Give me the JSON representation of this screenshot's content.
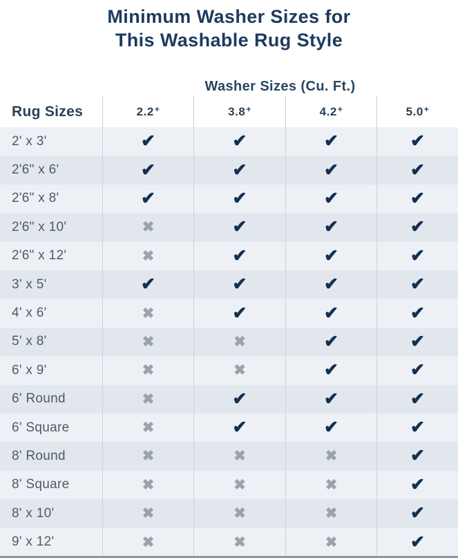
{
  "title": {
    "line1": "Minimum Washer Sizes for",
    "line2": "This Washable Rug Style"
  },
  "table": {
    "group_header": "Washer Sizes (Cu. Ft.)",
    "row_header": "Rug Sizes",
    "columns": [
      {
        "value": "2.2",
        "plus": "+"
      },
      {
        "value": "3.8",
        "plus": "+"
      },
      {
        "value": "4.2",
        "plus": "+"
      },
      {
        "value": "5.0",
        "plus": "+"
      }
    ],
    "rows": [
      {
        "label": "2' x 3'",
        "cells": [
          "check",
          "check",
          "check",
          "check"
        ]
      },
      {
        "label": "2'6\" x 6'",
        "cells": [
          "check",
          "check",
          "check",
          "check"
        ]
      },
      {
        "label": "2'6\" x 8'",
        "cells": [
          "check",
          "check",
          "check",
          "check"
        ]
      },
      {
        "label": "2'6\" x 10'",
        "cells": [
          "cross",
          "check",
          "check",
          "check"
        ]
      },
      {
        "label": "2'6\" x 12'",
        "cells": [
          "cross",
          "check",
          "check",
          "check"
        ]
      },
      {
        "label": "3' x 5'",
        "cells": [
          "check",
          "check",
          "check",
          "check"
        ]
      },
      {
        "label": "4' x 6'",
        "cells": [
          "cross",
          "check",
          "check",
          "check"
        ]
      },
      {
        "label": "5' x 8'",
        "cells": [
          "cross",
          "cross",
          "check",
          "check"
        ]
      },
      {
        "label": "6' x 9'",
        "cells": [
          "cross",
          "cross",
          "check",
          "check"
        ]
      },
      {
        "label": "6' Round",
        "cells": [
          "cross",
          "check",
          "check",
          "check"
        ]
      },
      {
        "label": "6' Square",
        "cells": [
          "cross",
          "check",
          "check",
          "check"
        ]
      },
      {
        "label": "8' Round",
        "cells": [
          "cross",
          "cross",
          "cross",
          "check"
        ]
      },
      {
        "label": "8' Square",
        "cells": [
          "cross",
          "cross",
          "cross",
          "check"
        ]
      },
      {
        "label": "8' x 10'",
        "cells": [
          "cross",
          "cross",
          "cross",
          "check"
        ]
      },
      {
        "label": "9' x 12'",
        "cells": [
          "cross",
          "cross",
          "cross",
          "check"
        ]
      }
    ]
  },
  "icons": {
    "check_glyph": "✔",
    "cross_glyph": "✖"
  },
  "colors": {
    "title_navy": "#1e3a5e",
    "header_navy": "#2b4156",
    "check_navy": "#14304f",
    "cross_gray": "#9aa2ad",
    "row_light": "#edf1f5",
    "row_dark": "#e2e7ee",
    "divider": "#ccd3da",
    "bottom_edge": "#8f969e"
  },
  "chart_data": {
    "type": "table",
    "title": "Minimum Washer Sizes for This Washable Rug Style",
    "subtitle": "Washer Sizes (Cu. Ft.)",
    "columns": [
      "Rug Sizes",
      "2.2+",
      "3.8+",
      "4.2+",
      "5.0+"
    ],
    "rows": [
      [
        "2' x 3'",
        "check",
        "check",
        "check",
        "check"
      ],
      [
        "2'6\" x 6'",
        "check",
        "check",
        "check",
        "check"
      ],
      [
        "2'6\" x 8'",
        "check",
        "check",
        "check",
        "check"
      ],
      [
        "2'6\" x 10'",
        "cross",
        "check",
        "check",
        "check"
      ],
      [
        "2'6\" x 12'",
        "cross",
        "check",
        "check",
        "check"
      ],
      [
        "3' x 5'",
        "check",
        "check",
        "check",
        "check"
      ],
      [
        "4' x 6'",
        "cross",
        "check",
        "check",
        "check"
      ],
      [
        "5' x 8'",
        "cross",
        "cross",
        "check",
        "check"
      ],
      [
        "6' x 9'",
        "cross",
        "cross",
        "check",
        "check"
      ],
      [
        "6' Round",
        "cross",
        "check",
        "check",
        "check"
      ],
      [
        "6' Square",
        "cross",
        "check",
        "check",
        "check"
      ],
      [
        "8' Round",
        "cross",
        "cross",
        "cross",
        "check"
      ],
      [
        "8' Square",
        "cross",
        "cross",
        "cross",
        "check"
      ],
      [
        "8' x 10'",
        "cross",
        "cross",
        "cross",
        "check"
      ],
      [
        "9' x 12'",
        "cross",
        "cross",
        "cross",
        "check"
      ]
    ],
    "legend_position": "none",
    "grid": "row-stripes"
  }
}
